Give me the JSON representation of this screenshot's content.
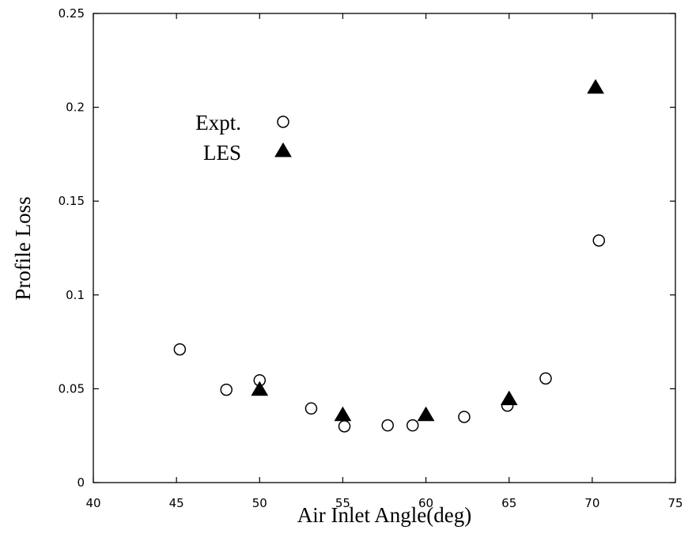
{
  "chart_data": {
    "type": "scatter",
    "title": "",
    "xlabel": "Air Inlet Angle(deg)",
    "ylabel": "Profile Loss",
    "xlim": [
      40,
      75
    ],
    "ylim": [
      0,
      0.25
    ],
    "x_ticks": [
      40,
      45,
      50,
      55,
      60,
      65,
      70,
      75
    ],
    "y_ticks": [
      0,
      0.05,
      0.1,
      0.15,
      0.2,
      0.25
    ],
    "x_tick_labels": [
      "40",
      "45",
      "50",
      "55",
      "60",
      "65",
      "70",
      "75"
    ],
    "y_tick_labels": [
      "0",
      "0.05",
      "0.1",
      "0.15",
      "0.2",
      "0.25"
    ],
    "grid": false,
    "legend_position": "top-left",
    "series": [
      {
        "name": "Expt.",
        "marker": "open-circle",
        "color": "#000000",
        "points": [
          {
            "x": 45.2,
            "y": 0.071
          },
          {
            "x": 48.0,
            "y": 0.0495
          },
          {
            "x": 50.0,
            "y": 0.0545
          },
          {
            "x": 53.1,
            "y": 0.0395
          },
          {
            "x": 55.1,
            "y": 0.03
          },
          {
            "x": 57.7,
            "y": 0.0305
          },
          {
            "x": 59.2,
            "y": 0.0305
          },
          {
            "x": 62.3,
            "y": 0.035
          },
          {
            "x": 64.9,
            "y": 0.041
          },
          {
            "x": 67.2,
            "y": 0.0555
          },
          {
            "x": 70.4,
            "y": 0.129
          }
        ]
      },
      {
        "name": "LES",
        "marker": "filled-triangle",
        "color": "#000000",
        "points": [
          {
            "x": 50.0,
            "y": 0.049
          },
          {
            "x": 55.0,
            "y": 0.0355
          },
          {
            "x": 60.0,
            "y": 0.0355
          },
          {
            "x": 65.0,
            "y": 0.044
          },
          {
            "x": 70.2,
            "y": 0.21
          }
        ]
      }
    ]
  }
}
